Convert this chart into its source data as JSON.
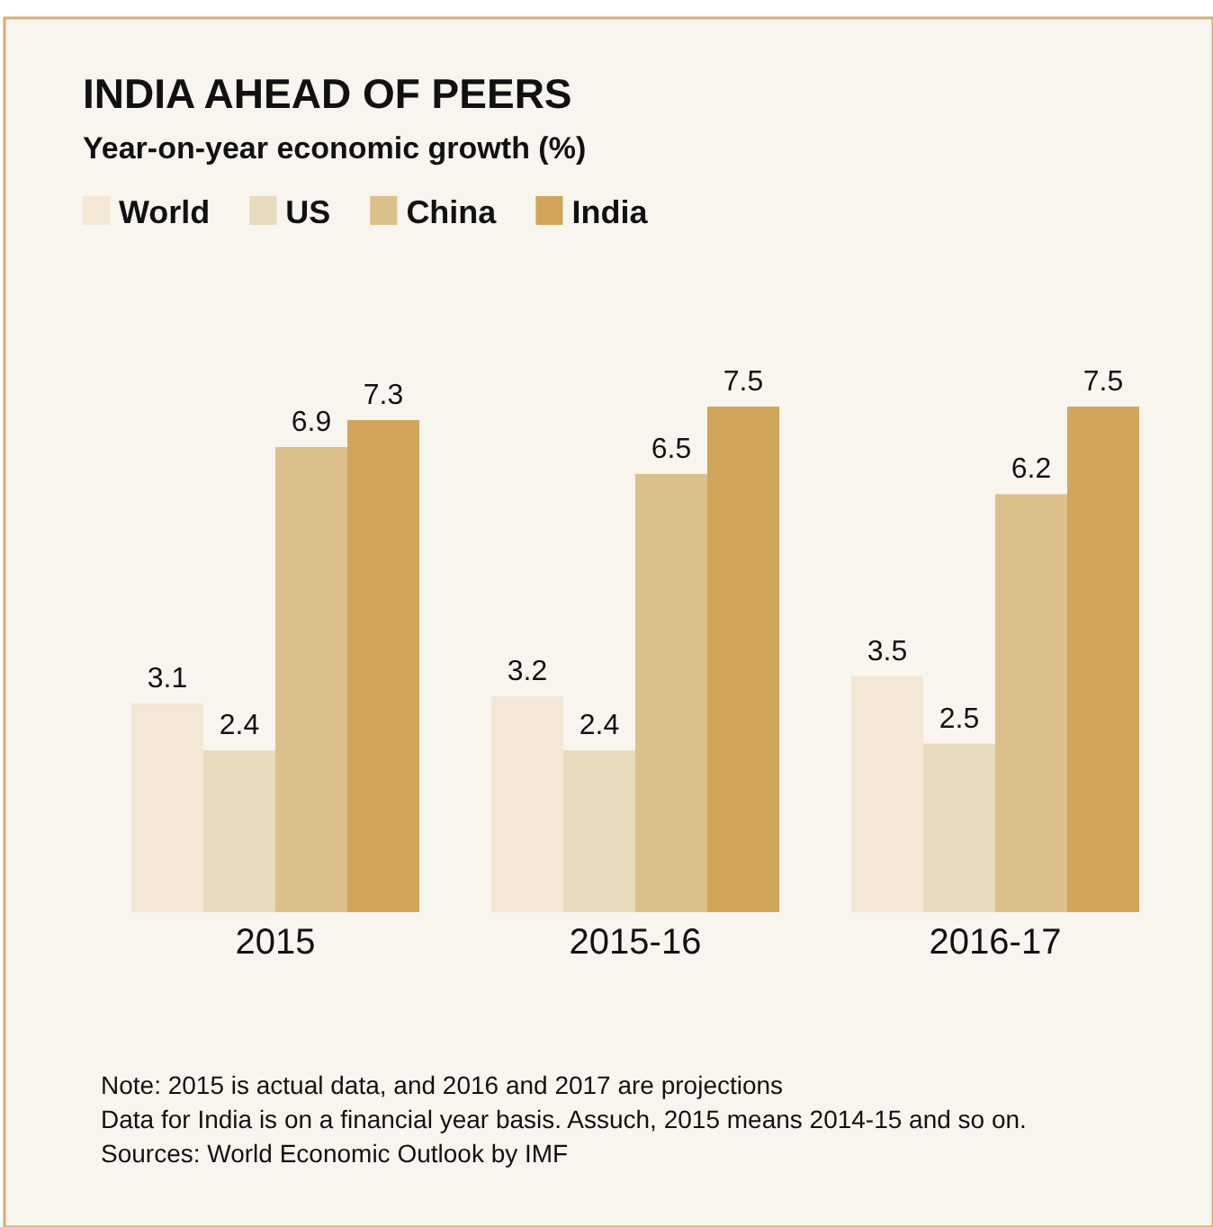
{
  "chart_data": {
    "type": "bar",
    "title": "INDIA AHEAD OF PEERS",
    "subtitle": "Year-on-year economic growth (%)",
    "categories": [
      "2015",
      "2015-16",
      "2016-17"
    ],
    "series": [
      {
        "name": "World",
        "color": "#f4e7d5",
        "values": [
          3.1,
          3.2,
          3.5
        ]
      },
      {
        "name": "US",
        "color": "#e9dbbd",
        "values": [
          2.4,
          2.4,
          2.5
        ]
      },
      {
        "name": "China",
        "color": "#dcc08c",
        "values": [
          6.9,
          6.5,
          6.2
        ]
      },
      {
        "name": "India",
        "color": "#cfa65a",
        "values": [
          7.3,
          7.5,
          7.5
        ]
      }
    ],
    "data_labels": true,
    "legend": "top left",
    "grid": false,
    "annotations": [
      "Note: 2015 is actual data, and 2016 and 2017 are projections",
      "Data for India is on a financial year basis. Assuch, 2015 means 2014-15 and so on.",
      "Sources: World Economic Outlook by IMF"
    ]
  }
}
